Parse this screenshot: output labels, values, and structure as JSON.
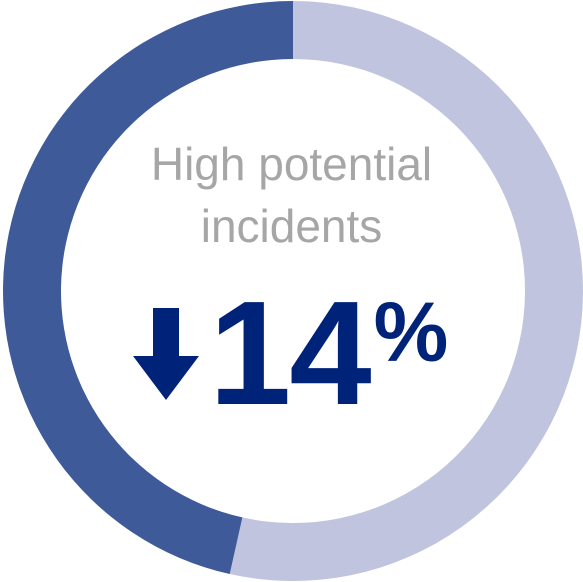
{
  "chart_data": {
    "type": "pie",
    "variant": "donut",
    "start_angle": "top (12 o'clock)",
    "direction": "clockwise",
    "slices": [
      {
        "value": 0.535,
        "color": "#c0c4df"
      },
      {
        "value": 0.465,
        "color": "#3e5a98"
      }
    ],
    "center_text": {
      "line1": "High potential",
      "line2": "incidents",
      "change_value": "14",
      "change_unit": "%",
      "change_direction": "down"
    },
    "colors": {
      "label_gray": "#a6a6a6",
      "kpi_navy": "#00237a"
    }
  }
}
